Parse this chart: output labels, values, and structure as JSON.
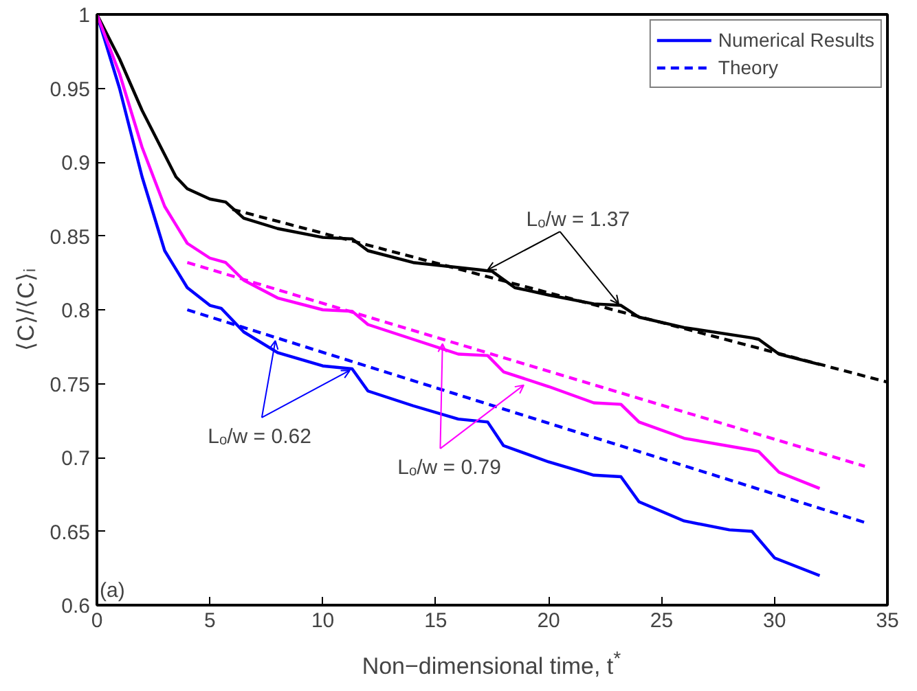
{
  "chart_data": {
    "type": "line",
    "xlabel": "Non−dimensional time, t$^{*}$",
    "ylabel": "⟨C⟩/⟨C⟩ᵢ",
    "xlim": [
      0,
      35
    ],
    "ylim": [
      0.6,
      1
    ],
    "xticks": [
      0,
      5,
      10,
      15,
      20,
      25,
      30,
      35
    ],
    "yticks": [
      0.6,
      0.65,
      0.7,
      0.75,
      0.8,
      0.85,
      0.9,
      0.95,
      1
    ],
    "grid": false,
    "legend": "top right",
    "series": [
      {
        "name": "Numerical Results",
        "color": "#0000ff",
        "line_style": "solid",
        "x": [
          0,
          1,
          2,
          3,
          4,
          5,
          5.5,
          6.5,
          8,
          10,
          11.3,
          12,
          14,
          16,
          17.3,
          18,
          20,
          22,
          23.2,
          24,
          26,
          28,
          29,
          30,
          32
        ],
        "values": [
          1,
          0.95,
          0.89,
          0.84,
          0.815,
          0.803,
          0.801,
          0.785,
          0.771,
          0.762,
          0.76,
          0.745,
          0.735,
          0.726,
          0.724,
          0.708,
          0.697,
          0.688,
          0.687,
          0.67,
          0.657,
          0.651,
          0.65,
          0.632,
          0.62
        ]
      },
      {
        "name": "Theory",
        "color": "#0000ff",
        "line_style": "dashed",
        "x": [
          4,
          34
        ],
        "values": [
          0.8,
          0.656
        ]
      },
      {
        "color": "#000000",
        "line_style": "solid",
        "x": [
          0,
          1,
          2,
          3,
          3.5,
          4,
          5,
          5.7,
          6.5,
          8,
          10,
          11.3,
          12,
          14,
          17,
          17.5,
          18.5,
          20,
          22,
          23.2,
          24,
          26,
          29,
          29.3,
          30.2,
          32
        ],
        "values": [
          1,
          0.97,
          0.935,
          0.905,
          0.89,
          0.882,
          0.875,
          0.873,
          0.862,
          0.855,
          0.849,
          0.848,
          0.84,
          0.832,
          0.827,
          0.826,
          0.815,
          0.81,
          0.804,
          0.803,
          0.795,
          0.788,
          0.781,
          0.78,
          0.77,
          0.763
        ]
      },
      {
        "color": "#000000",
        "line_style": "dashed",
        "x": [
          6,
          35
        ],
        "values": [
          0.868,
          0.751
        ]
      },
      {
        "color": "#ff00ff",
        "line_style": "solid",
        "x": [
          0,
          1,
          2,
          3,
          4,
          5,
          5.7,
          6.5,
          8,
          10,
          11.3,
          12,
          14,
          16,
          17.3,
          18,
          20,
          22,
          23.2,
          24,
          26,
          29,
          29.3,
          30.2,
          32
        ],
        "values": [
          1,
          0.96,
          0.91,
          0.87,
          0.845,
          0.835,
          0.832,
          0.82,
          0.808,
          0.8,
          0.799,
          0.79,
          0.78,
          0.77,
          0.769,
          0.758,
          0.748,
          0.737,
          0.736,
          0.724,
          0.713,
          0.705,
          0.704,
          0.69,
          0.679
        ]
      },
      {
        "color": "#ff00ff",
        "line_style": "dashed",
        "x": [
          4,
          34
        ],
        "values": [
          0.832,
          0.694
        ]
      }
    ],
    "annotations": [
      {
        "text": "Lₒ/w = 1.37",
        "x": 17.3,
        "y": 0.827
      },
      {
        "text": "Lₒ/w = 0.62",
        "x": 7.9,
        "y": 0.779
      },
      {
        "text": "Lₒ/w = 0.79",
        "x": 15.3,
        "y": 0.777
      },
      "(a)"
    ]
  }
}
